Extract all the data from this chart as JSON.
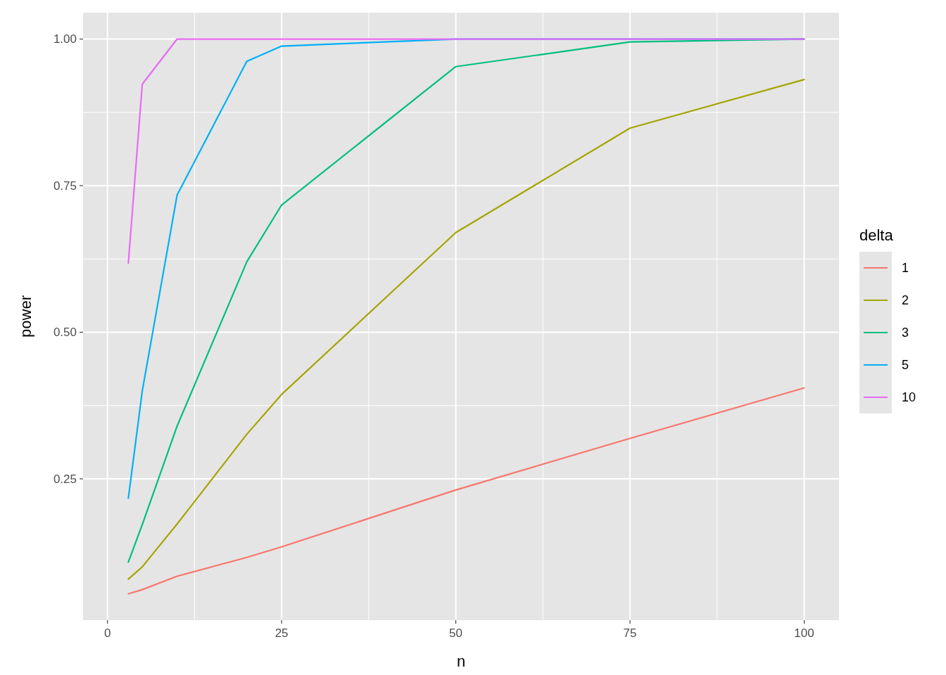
{
  "chart_data": {
    "type": "line",
    "xlabel": "n",
    "ylabel": "power",
    "legend_title": "delta",
    "legend": "right",
    "x": [
      3,
      5,
      10,
      20,
      25,
      50,
      75,
      100
    ],
    "xlim": [
      -3.5,
      105
    ],
    "xticks": [
      0,
      25,
      50,
      75,
      100
    ],
    "ylim": [
      0.009,
      1.045
    ],
    "yticks": [
      {
        "value": 0.25,
        "label": "0.25"
      },
      {
        "value": 0.5,
        "label": "0.50"
      },
      {
        "value": 0.75,
        "label": "0.75"
      },
      {
        "value": 1,
        "label": "1.00"
      }
    ],
    "grid": true,
    "series": [
      {
        "name": "1",
        "color": "#f8766d",
        "values": [
          0.054,
          0.061,
          0.084,
          0.116,
          0.134,
          0.231,
          0.319,
          0.405
        ]
      },
      {
        "name": "2",
        "color": "#a3a500",
        "values": [
          0.079,
          0.1,
          0.173,
          0.326,
          0.394,
          0.67,
          0.848,
          0.931
        ]
      },
      {
        "name": "3",
        "color": "#00bf7d",
        "values": [
          0.108,
          0.172,
          0.34,
          0.62,
          0.717,
          0.953,
          0.995,
          1.0
        ]
      },
      {
        "name": "5",
        "color": "#00b0f6",
        "values": [
          0.217,
          0.4,
          0.734,
          0.962,
          0.988,
          1.0,
          1.0,
          1.0
        ]
      },
      {
        "name": "10",
        "color": "#e76bf3",
        "values": [
          0.618,
          0.923,
          1.0,
          1.0,
          1.0,
          1.0,
          1.0,
          1.0
        ]
      }
    ]
  }
}
